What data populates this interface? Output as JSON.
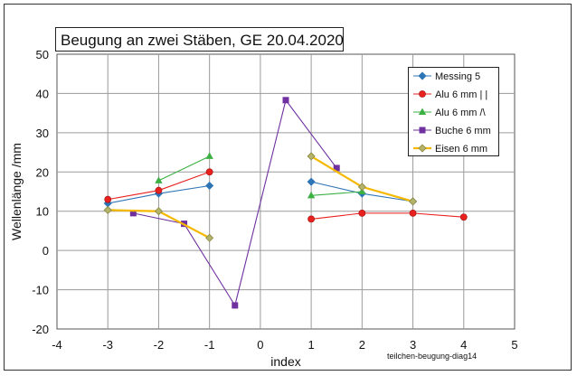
{
  "chart_data": {
    "type": "line",
    "title": "Beugung an zwei Stäben, GE  20.04.2020",
    "xlabel": "index",
    "ylabel": "Wellenlänge /mm",
    "xlim": [
      -4,
      5
    ],
    "ylim": [
      -20,
      50
    ],
    "xticks": [
      -4,
      -3,
      -2,
      -1,
      0,
      1,
      2,
      3,
      4,
      5
    ],
    "yticks": [
      -20,
      -10,
      0,
      10,
      20,
      30,
      40,
      50
    ],
    "grid": true,
    "legend_position": "top-right",
    "annotation": "teilchen-beugung-diag14",
    "series": [
      {
        "name": "Messing 5",
        "color": "#2E75B6",
        "marker": "diamond",
        "segments": [
          [
            [
              -3,
              12.0
            ],
            [
              -2,
              14.5
            ],
            [
              -1,
              16.5
            ]
          ],
          [
            [
              1,
              17.5
            ],
            [
              2,
              14.5
            ],
            [
              3,
              12.5
            ]
          ]
        ]
      },
      {
        "name": "Alu 6 mm | |",
        "color": "#E8201E",
        "marker": "circle",
        "segments": [
          [
            [
              -3,
              13.0
            ],
            [
              -2,
              15.3
            ],
            [
              -1,
              20.0
            ]
          ],
          [
            [
              1,
              8.0
            ],
            [
              2,
              9.5
            ],
            [
              3,
              9.5
            ],
            [
              4,
              8.5
            ]
          ]
        ]
      },
      {
        "name": "Alu 6 mm /\\",
        "color": "#3CB043",
        "marker": "triangle",
        "segments": [
          [
            [
              -2,
              17.8
            ],
            [
              -1,
              24.0
            ]
          ],
          [
            [
              1,
              14.0
            ],
            [
              2,
              15.0
            ]
          ]
        ]
      },
      {
        "name": "Buche 6 mm",
        "color": "#7030A0",
        "marker": "square",
        "segments": [
          [
            [
              -2.5,
              9.5
            ],
            [
              -1.5,
              6.8
            ],
            [
              -0.5,
              -14.0
            ],
            [
              0.5,
              38.3
            ],
            [
              1.5,
              21.0
            ]
          ]
        ]
      },
      {
        "name": "Eisen 6 mm",
        "color": "#F5B800",
        "marker": "diamond-olive",
        "segments": [
          [
            [
              -3,
              10.3
            ],
            [
              -2,
              10.0
            ],
            [
              -1,
              3.2
            ]
          ],
          [
            [
              1,
              24.0
            ],
            [
              2,
              16.2
            ],
            [
              3,
              12.5
            ]
          ]
        ]
      }
    ]
  }
}
